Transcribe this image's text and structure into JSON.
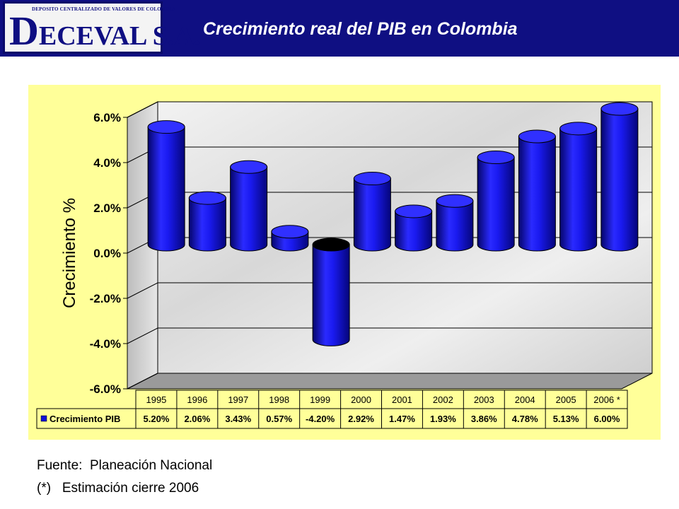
{
  "header": {
    "logo_subtitle": "DEPOSITO CENTRALIZADO DE VALORES DE COLOMBIA",
    "logo_initial": "D",
    "logo_rest": "ECEVAL S.A.",
    "title": "Crecimiento real del PIB en Colombia"
  },
  "colors": {
    "header_bg": "#0f0f82",
    "chart_bg": "#ffff99",
    "bar_fill": "#1010d8",
    "bar_negative_top": "#000000",
    "title_text": "#ffffff"
  },
  "chart_data": {
    "type": "bar",
    "style": "3d-cylinder",
    "categories": [
      "1995",
      "1996",
      "1997",
      "1998",
      "1999",
      "2000",
      "2001",
      "2002",
      "2003",
      "2004",
      "2005",
      "2006 *"
    ],
    "series": [
      {
        "name": "Crecimiento PIB",
        "values": [
          5.2,
          2.06,
          3.43,
          0.57,
          -4.2,
          2.92,
          1.47,
          1.93,
          3.86,
          4.78,
          5.13,
          6.0
        ]
      }
    ],
    "table_values": [
      "5.20%",
      "2.06%",
      "3.43%",
      "0.57%",
      "-4.20%",
      "2.92%",
      "1.47%",
      "1.93%",
      "3.86%",
      "4.78%",
      "5.13%",
      "6.00%"
    ],
    "ylabel": "Crecimiento %",
    "ylim": [
      -6.0,
      6.0
    ],
    "yticks": [
      "6.0%",
      "4.0%",
      "2.0%",
      "0.0%",
      "-2.0%",
      "-4.0%",
      "-6.0%"
    ],
    "ytick_values": [
      6,
      4,
      2,
      0,
      -2,
      -4,
      -6
    ],
    "grid": true,
    "legend": "data-table-below"
  },
  "footnotes": {
    "source": "Fuente:  Planeación Nacional",
    "estimate": "(*)   Estimación cierre 2006"
  }
}
